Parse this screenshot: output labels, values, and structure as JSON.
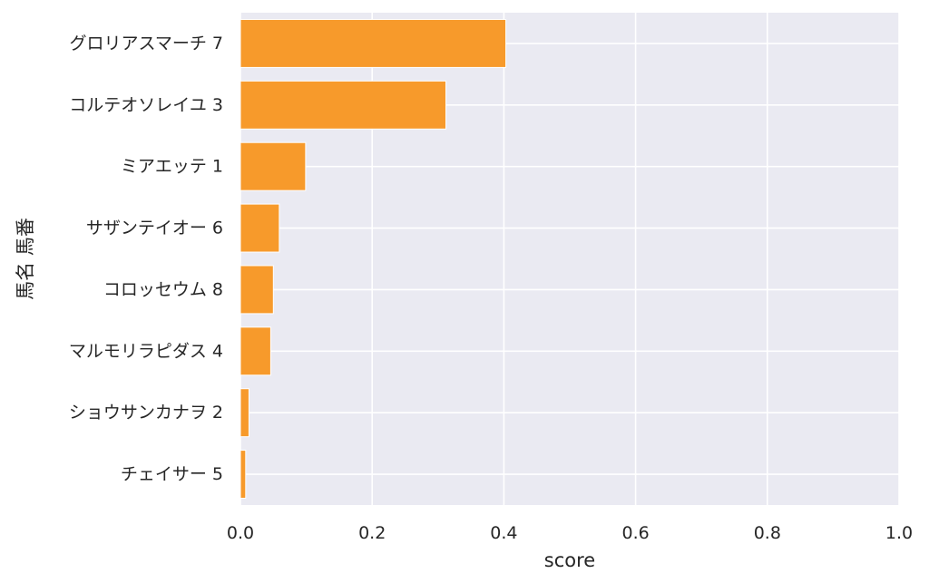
{
  "chart_data": {
    "type": "bar",
    "orientation": "horizontal",
    "categories": [
      "グロリアスマーチ 7",
      "コルテオソレイユ 3",
      "ミアエッテ 1",
      "サザンテイオー 6",
      "コロッセウム 8",
      "マルモリラピダス 4",
      "ショウサンカナヲ 2",
      "チェイサー 5"
    ],
    "values": [
      0.403,
      0.312,
      0.099,
      0.059,
      0.05,
      0.046,
      0.013,
      0.008
    ],
    "xlabel": "score",
    "ylabel": "馬名 馬番",
    "xlim": [
      0.0,
      1.0
    ],
    "xticks": [
      "0.0",
      "0.2",
      "0.4",
      "0.6",
      "0.8",
      "1.0"
    ],
    "grid": true,
    "colors": {
      "bar": "#f79a2b",
      "bar_edge": "#ffffff",
      "plot_background": "#eaeaf2",
      "grid": "#ffffff"
    }
  }
}
